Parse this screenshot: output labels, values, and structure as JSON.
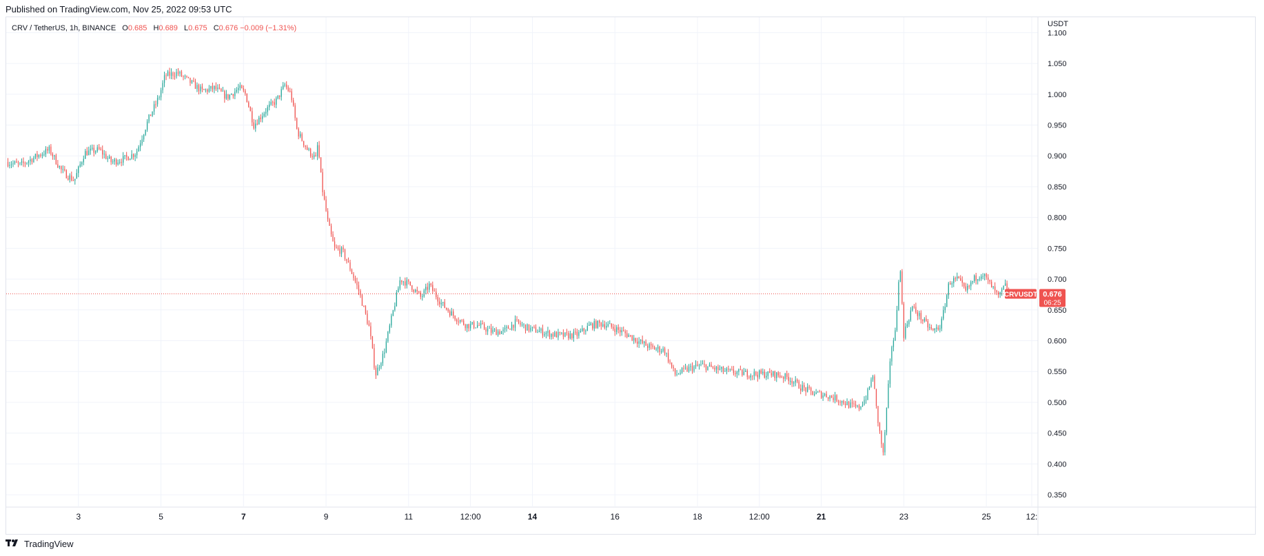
{
  "header": {
    "published": "Published on TradingView.com, Nov 25, 2022 09:53 UTC"
  },
  "legend": {
    "symbol": "CRV / TetherUS, 1h, BINANCE",
    "o_label": "O",
    "o_value": "0.685",
    "h_label": "H",
    "h_value": "0.689",
    "l_label": "L",
    "l_value": "0.675",
    "c_label": "C",
    "c_value": "0.676",
    "change": "−0.009 (−1.31%)"
  },
  "price_axis": {
    "currency": "USDT"
  },
  "last_price": {
    "symbol_tag": "CRVUSDT",
    "price": "0.676",
    "countdown": "06:25"
  },
  "footer": {
    "brand": "TradingView",
    "logo": "tradingview-logo-icon"
  },
  "colors": {
    "up": "#26a69a",
    "down": "#ef5350",
    "grid": "#f0f3fa",
    "text": "#131722"
  },
  "chart_data": {
    "type": "candlestick",
    "symbol": "CRVUSDT",
    "interval": "1h",
    "exchange": "BINANCE",
    "ylim": [
      0.33,
      1.125
    ],
    "y_ticks": [
      "0.350",
      "0.400",
      "0.450",
      "0.500",
      "0.550",
      "0.600",
      "0.650",
      "0.700",
      "0.750",
      "0.800",
      "0.850",
      "0.900",
      "0.950",
      "1.000",
      "1.050",
      "1.100"
    ],
    "x_range_days": [
      1.25,
      26.25
    ],
    "x_ticks": [
      {
        "label": "3",
        "day": 3,
        "bold": false
      },
      {
        "label": "5",
        "day": 5,
        "bold": false
      },
      {
        "label": "7",
        "day": 7,
        "bold": true
      },
      {
        "label": "9",
        "day": 9,
        "bold": false
      },
      {
        "label": "11",
        "day": 11,
        "bold": false
      },
      {
        "label": "12:00",
        "day": 12.5,
        "bold": false
      },
      {
        "label": "14",
        "day": 14,
        "bold": true
      },
      {
        "label": "16",
        "day": 16,
        "bold": false
      },
      {
        "label": "18",
        "day": 18,
        "bold": false
      },
      {
        "label": "12:00",
        "day": 19.5,
        "bold": false
      },
      {
        "label": "21",
        "day": 21,
        "bold": true
      },
      {
        "label": "23",
        "day": 23,
        "bold": false
      },
      {
        "label": "25",
        "day": 25,
        "bold": false
      },
      {
        "label": "12:",
        "day": 26.1,
        "bold": false
      }
    ],
    "grid": true,
    "price_line": 0.676,
    "close_path": [
      [
        1.25,
        0.89
      ],
      [
        1.6,
        0.885
      ],
      [
        2.0,
        0.9
      ],
      [
        2.3,
        0.91
      ],
      [
        2.6,
        0.875
      ],
      [
        2.9,
        0.86
      ],
      [
        3.15,
        0.905
      ],
      [
        3.5,
        0.91
      ],
      [
        3.8,
        0.89
      ],
      [
        4.1,
        0.895
      ],
      [
        4.4,
        0.905
      ],
      [
        4.7,
        0.96
      ],
      [
        4.95,
        0.995
      ],
      [
        5.1,
        1.03
      ],
      [
        5.4,
        1.035
      ],
      [
        5.7,
        1.02
      ],
      [
        6.0,
        1.005
      ],
      [
        6.3,
        1.01
      ],
      [
        6.6,
        0.995
      ],
      [
        6.9,
        1.01
      ],
      [
        7.05,
        1.0
      ],
      [
        7.25,
        0.95
      ],
      [
        7.55,
        0.975
      ],
      [
        7.8,
        0.99
      ],
      [
        8.0,
        1.015
      ],
      [
        8.15,
        1.0
      ],
      [
        8.3,
        0.94
      ],
      [
        8.55,
        0.91
      ],
      [
        8.75,
        0.895
      ],
      [
        8.8,
        0.92
      ],
      [
        8.9,
        0.85
      ],
      [
        9.05,
        0.79
      ],
      [
        9.2,
        0.75
      ],
      [
        9.4,
        0.745
      ],
      [
        9.6,
        0.715
      ],
      [
        9.8,
        0.68
      ],
      [
        10.05,
        0.62
      ],
      [
        10.2,
        0.545
      ],
      [
        10.4,
        0.58
      ],
      [
        10.6,
        0.64
      ],
      [
        10.8,
        0.7
      ],
      [
        11.05,
        0.69
      ],
      [
        11.3,
        0.67
      ],
      [
        11.5,
        0.69
      ],
      [
        11.8,
        0.66
      ],
      [
        12.1,
        0.64
      ],
      [
        12.4,
        0.625
      ],
      [
        12.7,
        0.625
      ],
      [
        13.0,
        0.615
      ],
      [
        13.3,
        0.615
      ],
      [
        13.6,
        0.63
      ],
      [
        13.9,
        0.62
      ],
      [
        14.2,
        0.615
      ],
      [
        14.5,
        0.61
      ],
      [
        14.8,
        0.608
      ],
      [
        15.1,
        0.61
      ],
      [
        15.4,
        0.625
      ],
      [
        15.7,
        0.628
      ],
      [
        16.0,
        0.62
      ],
      [
        16.3,
        0.61
      ],
      [
        16.6,
        0.598
      ],
      [
        16.9,
        0.588
      ],
      [
        17.2,
        0.585
      ],
      [
        17.45,
        0.545
      ],
      [
        17.8,
        0.555
      ],
      [
        18.1,
        0.56
      ],
      [
        18.4,
        0.555
      ],
      [
        18.7,
        0.55
      ],
      [
        19.0,
        0.548
      ],
      [
        19.3,
        0.546
      ],
      [
        19.6,
        0.546
      ],
      [
        19.9,
        0.545
      ],
      [
        20.2,
        0.54
      ],
      [
        20.5,
        0.525
      ],
      [
        20.8,
        0.515
      ],
      [
        21.1,
        0.512
      ],
      [
        21.4,
        0.505
      ],
      [
        21.7,
        0.495
      ],
      [
        21.9,
        0.49
      ],
      [
        22.1,
        0.51
      ],
      [
        22.25,
        0.545
      ],
      [
        22.35,
        0.48
      ],
      [
        22.5,
        0.415
      ],
      [
        22.7,
        0.59
      ],
      [
        22.8,
        0.615
      ],
      [
        22.9,
        0.73
      ],
      [
        23.0,
        0.61
      ],
      [
        23.2,
        0.655
      ],
      [
        23.5,
        0.63
      ],
      [
        23.7,
        0.615
      ],
      [
        23.9,
        0.625
      ],
      [
        24.1,
        0.695
      ],
      [
        24.3,
        0.7
      ],
      [
        24.5,
        0.68
      ],
      [
        24.7,
        0.7
      ],
      [
        24.9,
        0.71
      ],
      [
        25.1,
        0.69
      ],
      [
        25.3,
        0.67
      ],
      [
        25.45,
        0.69
      ],
      [
        25.55,
        0.676
      ]
    ]
  }
}
